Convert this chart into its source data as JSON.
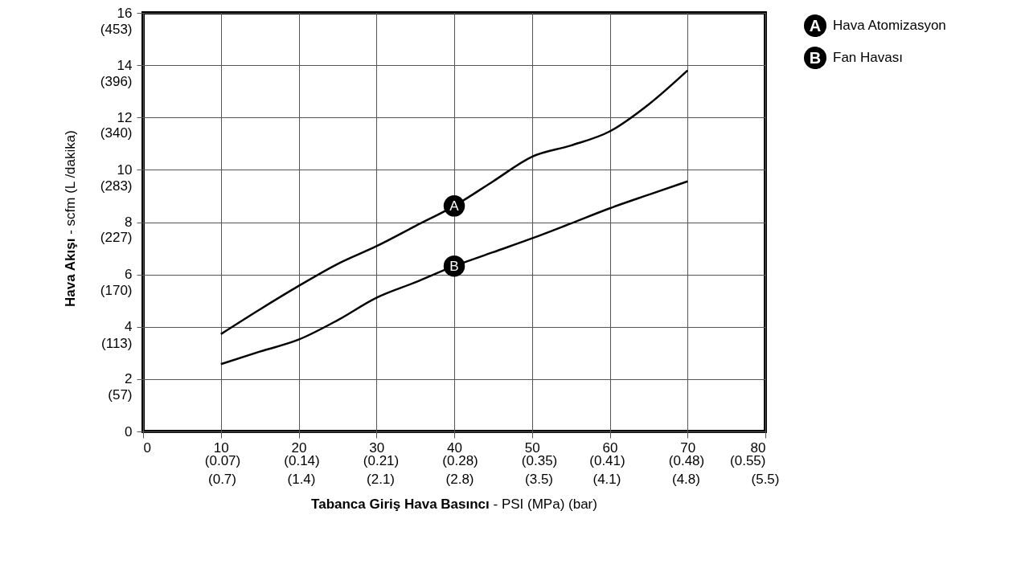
{
  "chart_data": {
    "type": "line",
    "xlabel": "Tabanca Giriş Hava Basıncı - PSI (MPa) (bar)",
    "y2label": "Hava Akışı - scfm (L /dakika)",
    "x": [
      10,
      15,
      20,
      25,
      30,
      35,
      40,
      45,
      50,
      55,
      60,
      65,
      70
    ],
    "series": [
      {
        "name": "Hava Atomizasyon",
        "color": "#000000",
        "values": [
          3.72,
          4.66,
          5.56,
          6.4,
          7.08,
          7.85,
          8.62,
          9.56,
          10.5,
          10.93,
          11.47,
          12.5,
          13.8
        ]
      },
      {
        "name": "Fan Havası",
        "color": "#000000",
        "values": [
          2.57,
          3.05,
          3.51,
          4.25,
          5.11,
          5.7,
          6.32,
          6.85,
          7.38,
          7.95,
          8.53,
          9.05,
          9.56
        ]
      }
    ],
    "annotations": [
      {
        "text": "A",
        "x": 40,
        "y": 8.62
      },
      {
        "text": "B",
        "x": 40,
        "y": 6.32
      },
      "(0.7)",
      "(1.4)",
      "(2.1)",
      "(2.8)",
      "(3.5)",
      "(4.1)",
      "(4.8)",
      "(5.5)"
    ],
    "xlim": [
      0,
      80
    ],
    "ylim": [
      0,
      16
    ],
    "xticks": [
      0,
      10,
      20,
      30,
      40,
      50,
      60,
      70,
      80
    ],
    "x2lim": [
      0,
      0.55
    ],
    "x2ticks": [
      {
        "value": 0.07,
        "label": "(0.07)"
      },
      {
        "value": 0.14,
        "label": "(0.14)"
      },
      {
        "value": 0.21,
        "label": "(0.21)"
      },
      {
        "value": 0.28,
        "label": "(0.28)"
      },
      {
        "value": 0.35,
        "label": "(0.35)"
      },
      {
        "value": 0.41,
        "label": "(0.41)"
      },
      {
        "value": 0.48,
        "label": "(0.48)"
      },
      {
        "value": 0.55,
        "label": "(0.55)"
      }
    ],
    "yticks": [
      0,
      2,
      4,
      6,
      8,
      10,
      12,
      14,
      16
    ],
    "y2lim": [
      0,
      453
    ],
    "y2ticks": [
      {
        "value": 57,
        "label": "(57)"
      },
      {
        "value": 113,
        "label": "(113)"
      },
      {
        "value": 170,
        "label": "(170)"
      },
      {
        "value": 227,
        "label": "(227)"
      },
      {
        "value": 283,
        "label": "(283)"
      },
      {
        "value": 340,
        "label": "(340)"
      },
      {
        "value": 396,
        "label": "(396)"
      },
      {
        "value": 453,
        "label": "(453)"
      }
    ],
    "grid": true,
    "legend": "top right",
    "marker": "none",
    "line_style": "solid"
  }
}
